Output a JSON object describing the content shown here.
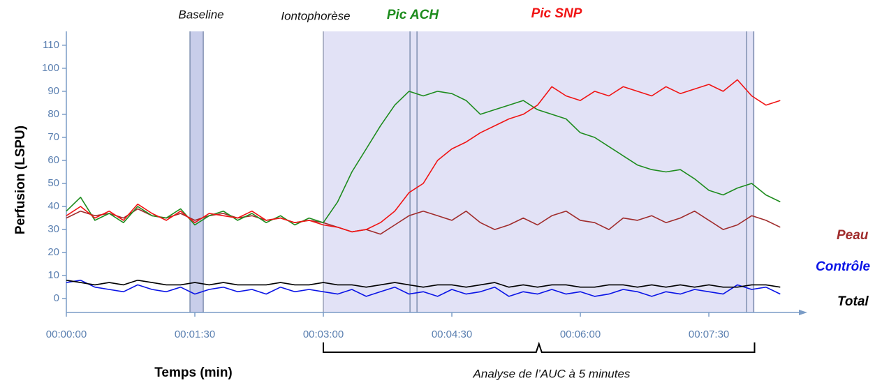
{
  "chart_data": {
    "type": "line",
    "ylabel": "Perfusion (LSPU)",
    "xlabel": "Temps (min)",
    "annotations": {
      "baseline": "Baseline",
      "iontophoresis": "Iontophorèse",
      "auc": "Analyse de l’AUC à 5 minutes"
    },
    "xlim": [
      0,
      516
    ],
    "ylim": [
      -6,
      116
    ],
    "xticks": [
      {
        "value": 0,
        "label": "00:00:00"
      },
      {
        "value": 90,
        "label": "00:01:30"
      },
      {
        "value": 180,
        "label": "00:03:00"
      },
      {
        "value": 270,
        "label": "00:04:30"
      },
      {
        "value": 360,
        "label": "00:06:00"
      },
      {
        "value": 450,
        "label": "00:07:30"
      }
    ],
    "yticks": [
      0,
      10,
      20,
      30,
      40,
      50,
      60,
      70,
      80,
      90,
      100,
      110
    ],
    "shaded": [
      180,
      482
    ],
    "baseline_band": [
      86.6,
      95.9
    ],
    "markers": [
      86.6,
      95.9,
      240.7,
      245.6,
      476.5,
      481.4
    ],
    "x": [
      0,
      10,
      20,
      30,
      40,
      50,
      60,
      70,
      80,
      90,
      100,
      110,
      120,
      130,
      140,
      150,
      160,
      170,
      180,
      190,
      200,
      210,
      220,
      230,
      240,
      250,
      260,
      270,
      280,
      290,
      300,
      310,
      320,
      330,
      340,
      350,
      360,
      370,
      380,
      390,
      400,
      410,
      420,
      430,
      440,
      450,
      460,
      470,
      480,
      490,
      500
    ],
    "series": [
      {
        "name": "Contrôle",
        "color": "#0a14e6",
        "values": [
          7,
          8,
          5,
          4,
          3,
          6,
          4,
          3,
          5,
          2,
          4,
          5,
          3,
          4,
          2,
          5,
          3,
          4,
          3,
          2,
          4,
          1,
          3,
          5,
          2,
          3,
          1,
          4,
          2,
          3,
          5,
          1,
          3,
          2,
          4,
          2,
          3,
          1,
          2,
          4,
          3,
          1,
          3,
          2,
          4,
          3,
          2,
          6,
          4,
          5,
          2
        ]
      },
      {
        "name": "Total",
        "color": "#000000",
        "values": [
          8,
          7,
          6,
          7,
          6,
          8,
          7,
          6,
          6,
          7,
          6,
          7,
          6,
          6,
          6,
          7,
          6,
          6,
          7,
          6,
          6,
          5,
          6,
          7,
          6,
          5,
          6,
          6,
          5,
          6,
          7,
          5,
          6,
          5,
          6,
          6,
          5,
          5,
          6,
          6,
          5,
          6,
          5,
          6,
          5,
          6,
          5,
          5,
          6,
          6,
          5
        ]
      },
      {
        "name": "Peau",
        "color": "#a02c2c",
        "values": [
          35,
          38,
          36,
          37,
          35,
          39,
          36,
          35,
          37,
          34,
          36,
          37,
          35,
          36,
          34,
          35,
          33,
          34,
          33,
          31,
          29,
          30,
          28,
          32,
          36,
          38,
          36,
          34,
          38,
          33,
          30,
          32,
          35,
          32,
          36,
          38,
          34,
          33,
          30,
          35,
          34,
          36,
          33,
          35,
          38,
          34,
          30,
          32,
          36,
          34,
          31
        ]
      },
      {
        "name": "Pic ACH",
        "color": "#1e8c1e",
        "values": [
          38,
          44,
          34,
          37,
          33,
          40,
          36,
          35,
          39,
          32,
          36,
          38,
          34,
          37,
          33,
          36,
          32,
          35,
          33,
          42,
          55,
          65,
          75,
          84,
          90,
          88,
          90,
          89,
          86,
          80,
          82,
          84,
          86,
          82,
          80,
          78,
          72,
          70,
          66,
          62,
          58,
          56,
          55,
          56,
          52,
          47,
          45,
          48,
          50,
          45,
          42
        ]
      },
      {
        "name": "Pic SNP",
        "color": "#f01414",
        "values": [
          36,
          40,
          35,
          38,
          34,
          41,
          37,
          34,
          38,
          33,
          37,
          36,
          35,
          38,
          34,
          35,
          33,
          34,
          32,
          31,
          29,
          30,
          33,
          38,
          46,
          50,
          60,
          65,
          68,
          72,
          75,
          78,
          80,
          84,
          92,
          88,
          86,
          90,
          88,
          92,
          90,
          88,
          92,
          89,
          91,
          93,
          90,
          95,
          88,
          84,
          86
        ]
      }
    ]
  }
}
